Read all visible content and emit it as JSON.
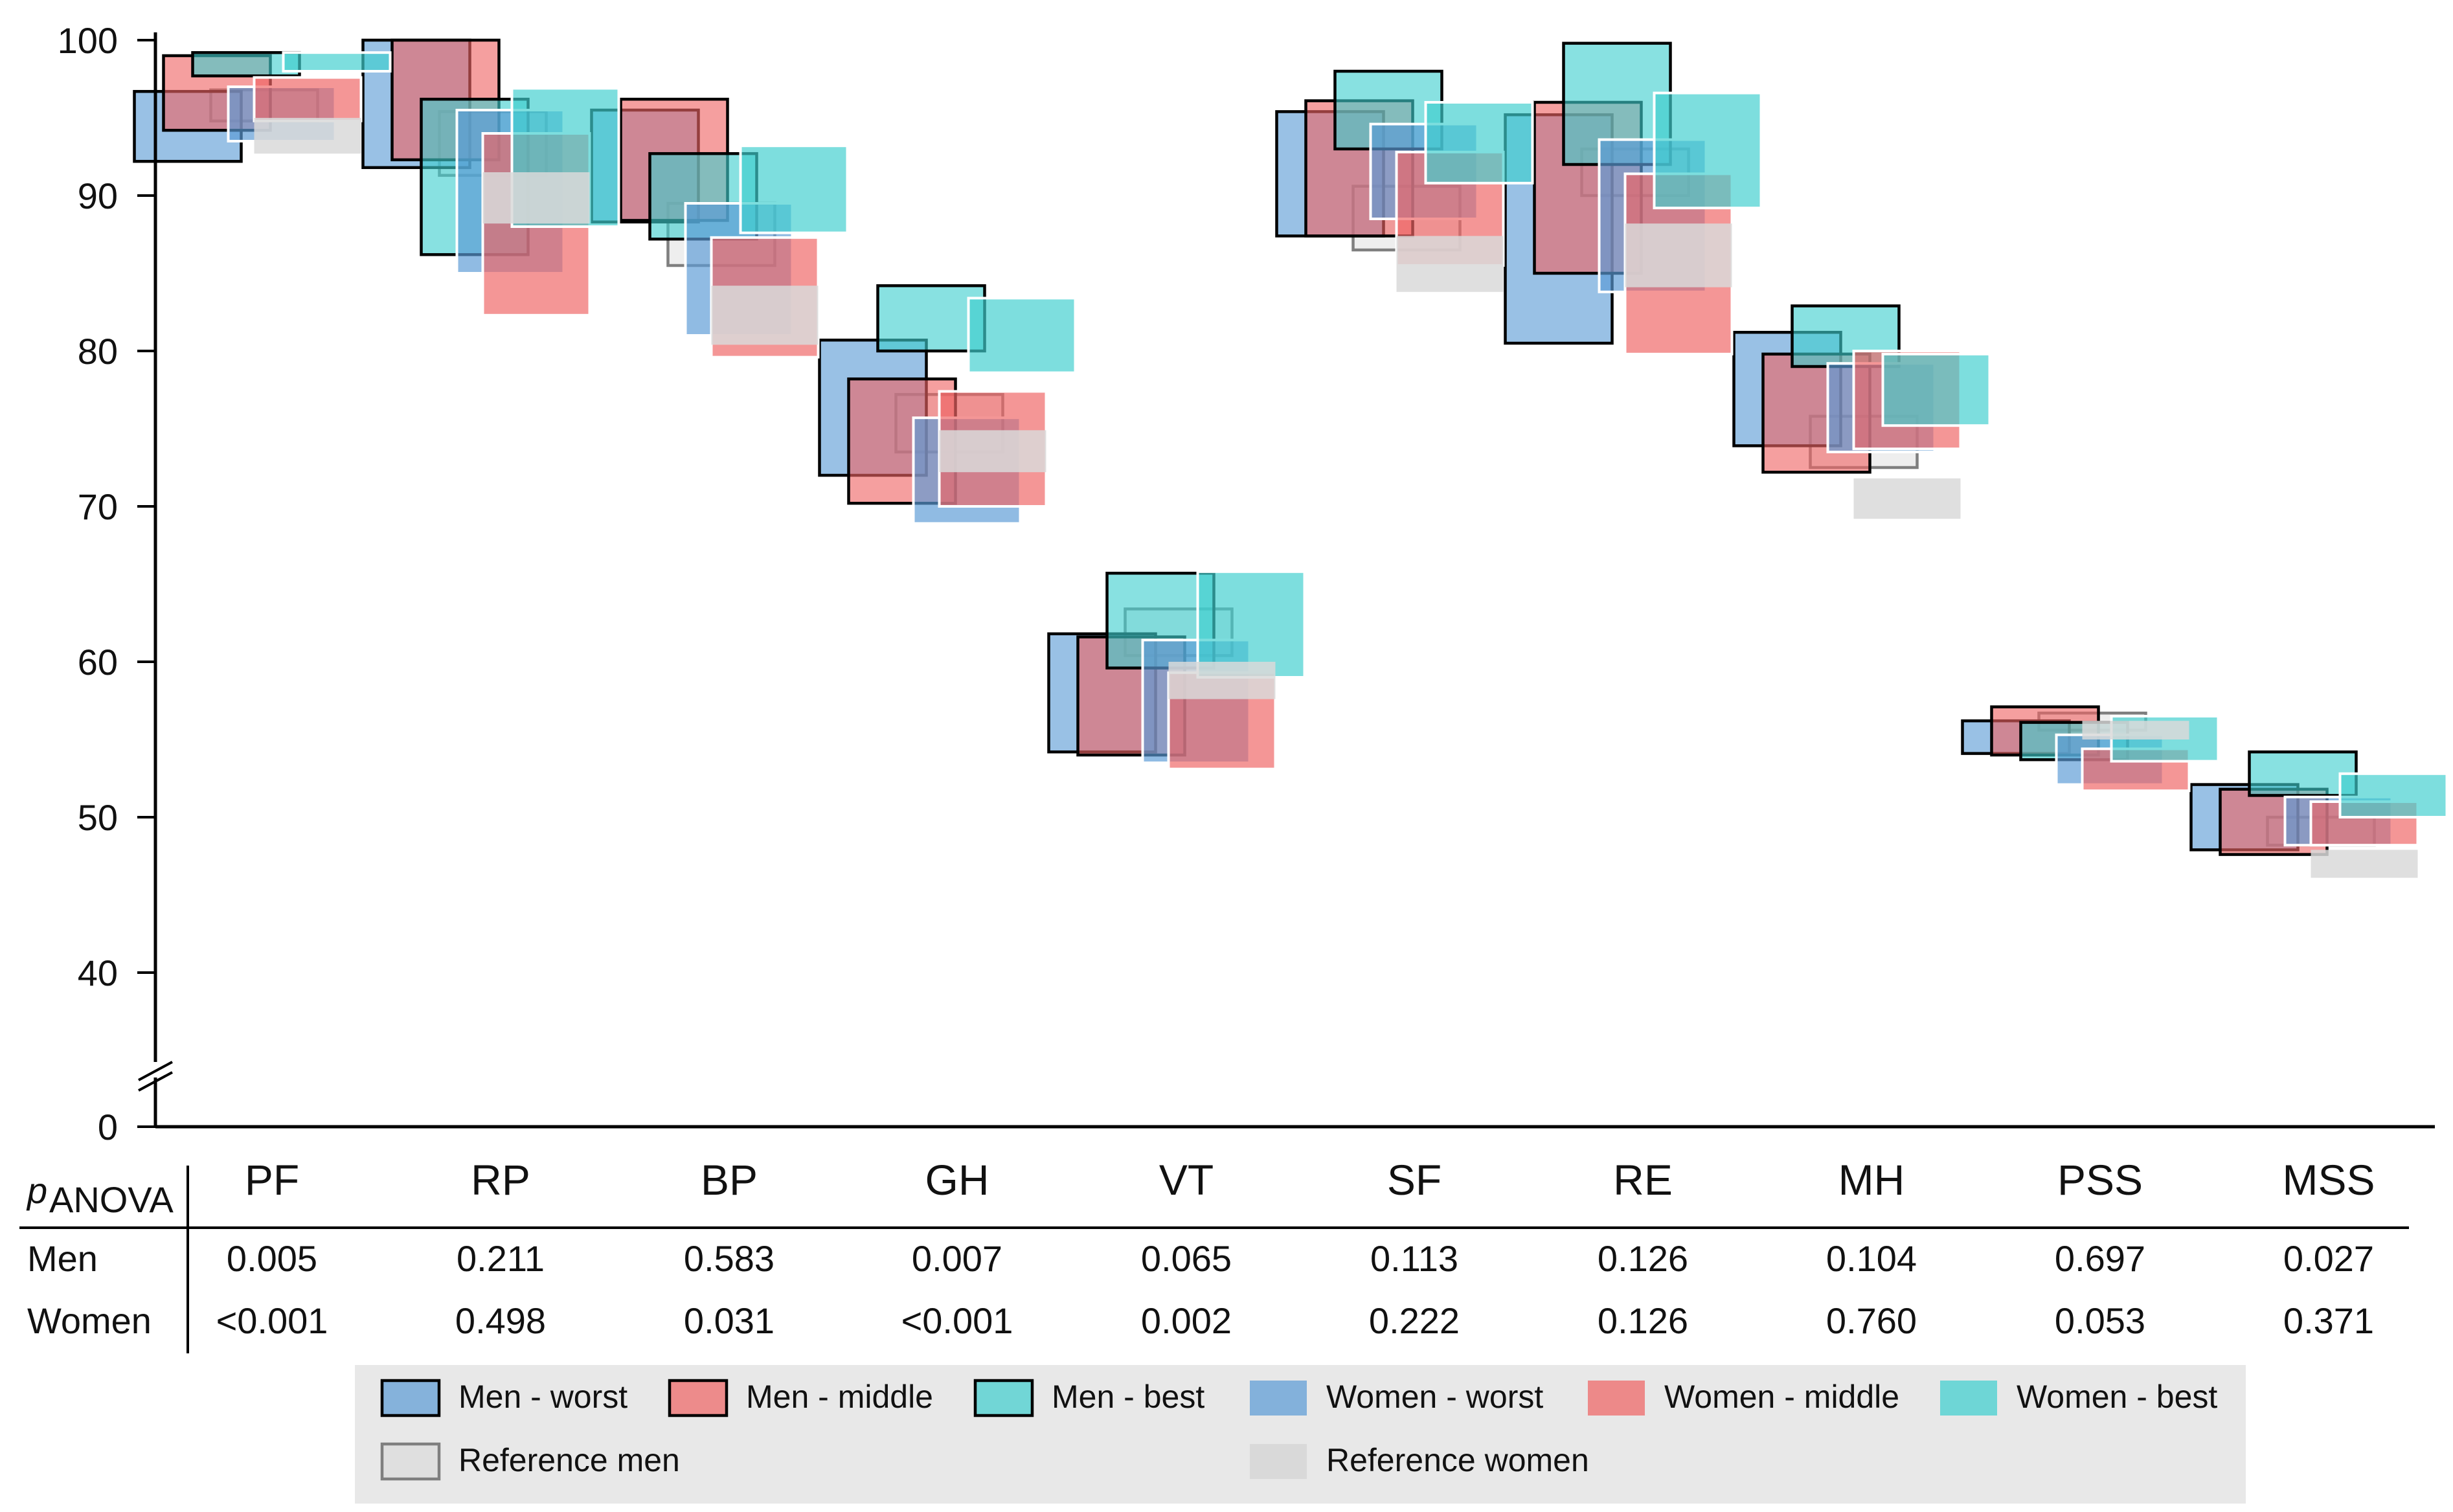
{
  "chart_data": {
    "type": "box",
    "ylim": [
      40,
      100
    ],
    "yticks": [
      "100",
      "90",
      "80",
      "70",
      "60",
      "50",
      "40",
      "0"
    ],
    "axis_break": true,
    "categories": [
      "PF",
      "RP",
      "BP",
      "GH",
      "VT",
      "SF",
      "RE",
      "MH",
      "PSS",
      "MSS"
    ],
    "series": [
      {
        "name": "Men - worst",
        "color": "#5b9bd5",
        "outlined": true,
        "ranges": [
          [
            92.2,
            96.7
          ],
          [
            91.8,
            100.0
          ],
          [
            88.3,
            95.5
          ],
          [
            72.0,
            80.7
          ],
          [
            54.2,
            61.8
          ],
          [
            87.4,
            95.4
          ],
          [
            80.5,
            95.2
          ],
          [
            73.9,
            81.2
          ],
          [
            54.1,
            56.2
          ],
          [
            47.9,
            52.1
          ]
        ]
      },
      {
        "name": "Men - middle",
        "color": "#ef6464",
        "outlined": true,
        "ranges": [
          [
            94.2,
            99.0
          ],
          [
            92.3,
            100.0
          ],
          [
            88.4,
            96.2
          ],
          [
            70.2,
            78.2
          ],
          [
            54.0,
            61.6
          ],
          [
            87.4,
            96.1
          ],
          [
            85.0,
            96.0
          ],
          [
            72.2,
            79.8
          ],
          [
            54.0,
            57.1
          ],
          [
            47.6,
            51.8
          ]
        ]
      },
      {
        "name": "Men - best",
        "color": "#3fcfcf",
        "outlined": true,
        "ranges": [
          [
            97.7,
            99.2
          ],
          [
            86.2,
            96.2
          ],
          [
            87.2,
            92.7
          ],
          [
            80.0,
            84.2
          ],
          [
            59.6,
            65.7
          ],
          [
            93.0,
            98.0
          ],
          [
            92.0,
            99.8
          ],
          [
            79.0,
            82.9
          ],
          [
            53.7,
            56.1
          ],
          [
            51.4,
            54.2
          ]
        ]
      },
      {
        "name": "Women - worst",
        "color": "#5b9bd5",
        "outlined": false,
        "ranges": [
          [
            93.5,
            97.0
          ],
          [
            85.0,
            95.5
          ],
          [
            81.0,
            89.5
          ],
          [
            68.9,
            75.7
          ],
          [
            53.5,
            61.4
          ],
          [
            88.5,
            94.6
          ],
          [
            83.8,
            93.6
          ],
          [
            73.5,
            79.2
          ],
          [
            52.1,
            55.3
          ],
          [
            48.2,
            51.3
          ]
        ]
      },
      {
        "name": "Women - middle",
        "color": "#ef6464",
        "outlined": false,
        "ranges": [
          [
            94.8,
            97.6
          ],
          [
            82.3,
            94.0
          ],
          [
            79.6,
            87.3
          ],
          [
            70.0,
            77.4
          ],
          [
            53.1,
            59.3
          ],
          [
            85.5,
            92.8
          ],
          [
            79.8,
            91.4
          ],
          [
            73.7,
            80.0
          ],
          [
            51.7,
            54.4
          ],
          [
            48.2,
            51.0
          ]
        ]
      },
      {
        "name": "Women - best",
        "color": "#3fcfcf",
        "outlined": false,
        "ranges": [
          [
            98.0,
            99.2
          ],
          [
            88.0,
            96.9
          ],
          [
            87.6,
            93.2
          ],
          [
            78.6,
            83.4
          ],
          [
            59.0,
            65.8
          ],
          [
            90.8,
            96.0
          ],
          [
            89.2,
            96.6
          ],
          [
            75.2,
            79.8
          ],
          [
            53.6,
            56.5
          ],
          [
            50.0,
            52.8
          ]
        ]
      },
      {
        "name": "Reference men",
        "color": "#d9d9d9",
        "outlined": true,
        "ranges": [
          [
            94.8,
            96.8
          ],
          [
            91.3,
            95.4
          ],
          [
            85.5,
            89.5
          ],
          [
            73.5,
            77.2
          ],
          [
            60.4,
            63.4
          ],
          [
            86.5,
            90.6
          ],
          [
            90.0,
            93.0
          ],
          [
            72.5,
            75.8
          ],
          [
            55.6,
            56.7
          ],
          [
            48.2,
            50.0
          ]
        ]
      },
      {
        "name": "Reference women",
        "color": "#d9d9d9",
        "outlined": false,
        "ranges": [
          [
            92.7,
            95.0
          ],
          [
            88.2,
            91.5
          ],
          [
            80.4,
            84.2
          ],
          [
            72.2,
            74.9
          ],
          [
            57.6,
            60.0
          ],
          [
            83.8,
            87.4
          ],
          [
            84.1,
            88.2
          ],
          [
            69.2,
            71.8
          ],
          [
            55.0,
            56.2
          ],
          [
            46.1,
            47.9
          ]
        ]
      }
    ],
    "table": {
      "header": "p",
      "header_sub": "ANOVA",
      "rows": [
        {
          "label": "Men",
          "values": [
            "0.005",
            "0.211",
            "0.583",
            "0.007",
            "0.065",
            "0.113",
            "0.126",
            "0.104",
            "0.697",
            "0.027"
          ]
        },
        {
          "label": "Women",
          "values": [
            "<0.001",
            "0.498",
            "0.031",
            "<0.001",
            "0.002",
            "0.222",
            "0.126",
            "0.760",
            "0.053",
            "0.371"
          ]
        }
      ]
    }
  }
}
